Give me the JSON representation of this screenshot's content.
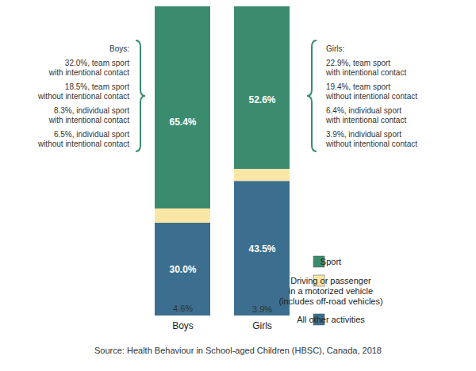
{
  "chart_data": {
    "type": "bar",
    "stacked": true,
    "data_labels": true,
    "tick_labels": "x",
    "legend": "bottom-right",
    "categories": [
      "Boys",
      "Girls"
    ],
    "ylim": [
      0,
      100
    ],
    "series": [
      {
        "name": "Sport",
        "color": "#3b8c6e",
        "values": [
          65.4,
          52.6
        ],
        "value_labels": [
          "65.4%",
          "52.6%"
        ]
      },
      {
        "name": "Driving or passenger\nin a motorized vehicle\n(includes off-road vehicles)",
        "color": "#fbe7a5",
        "values": [
          4.6,
          3.9
        ],
        "value_labels": [
          "4.6%",
          "3.9%"
        ]
      },
      {
        "name": "All other activities",
        "color": "#3c6f8f",
        "values": [
          30.0,
          43.5
        ],
        "value_labels": [
          "30.0%",
          "43.5%"
        ]
      }
    ],
    "annotations": [
      {
        "category": "Boys",
        "heading": "Boys:",
        "items": [
          "32.0%, team sport\nwith intentional contact",
          "18.5%, team sport\nwithout intentional contact",
          "8.3%, individual sport\nwith intentional contact",
          "6.5%, individual sport\nwithout intentional contact"
        ]
      },
      {
        "category": "Girls",
        "heading": "Girls:",
        "items": [
          "22.9%, team sport\nwith intentional contact",
          "19.4%, team sport\nwithout intentional contact",
          "6.4%, individual sport\nwith intentional contact",
          "3.9%, individual sport\nwithout intentional contact"
        ]
      }
    ],
    "caption": "Source: Health Behaviour in School-aged Children (HBSC), Canada, 2018"
  }
}
